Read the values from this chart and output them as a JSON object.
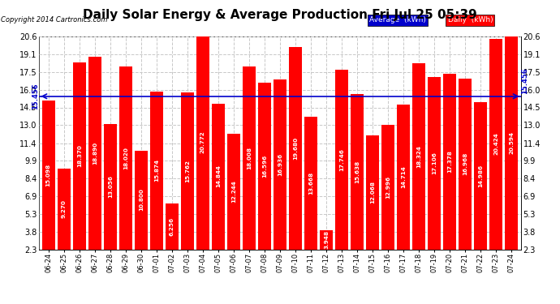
{
  "title": "Daily Solar Energy & Average Production Fri Jul 25 05:39",
  "copyright": "Copyright 2014 Cartronics.com",
  "categories": [
    "06-24",
    "06-25",
    "06-26",
    "06-27",
    "06-28",
    "06-29",
    "06-30",
    "07-01",
    "07-02",
    "07-03",
    "07-04",
    "07-05",
    "07-06",
    "07-07",
    "07-08",
    "07-09",
    "07-10",
    "07-11",
    "07-12",
    "07-13",
    "07-14",
    "07-15",
    "07-16",
    "07-17",
    "07-18",
    "07-19",
    "07-20",
    "07-21",
    "07-22",
    "07-23",
    "07-24"
  ],
  "values": [
    15.098,
    9.27,
    18.37,
    18.89,
    13.056,
    18.02,
    10.8,
    15.874,
    6.256,
    15.762,
    20.772,
    14.844,
    12.244,
    18.008,
    16.596,
    16.936,
    19.68,
    13.668,
    3.948,
    17.746,
    15.638,
    12.068,
    12.996,
    14.714,
    18.324,
    17.106,
    17.378,
    16.968,
    14.986,
    20.424,
    20.594
  ],
  "average": 15.456,
  "bar_color": "#ff0000",
  "avg_line_color": "#0000cc",
  "ylim_min": 2.3,
  "ylim_max": 20.6,
  "yticks": [
    2.3,
    3.8,
    5.3,
    6.9,
    8.4,
    9.9,
    11.4,
    13.0,
    14.5,
    16.0,
    17.5,
    19.1,
    20.6
  ],
  "bg_color": "#ffffff",
  "plot_bg_color": "#ffffff",
  "grid_color": "#c8c8c8",
  "title_fontsize": 11,
  "avg_label": "15.456",
  "legend_avg_label": "Average  (kWh)",
  "legend_daily_label": "Daily  (kWh)",
  "legend_avg_color": "#0000cc",
  "legend_daily_color": "#ff0000"
}
